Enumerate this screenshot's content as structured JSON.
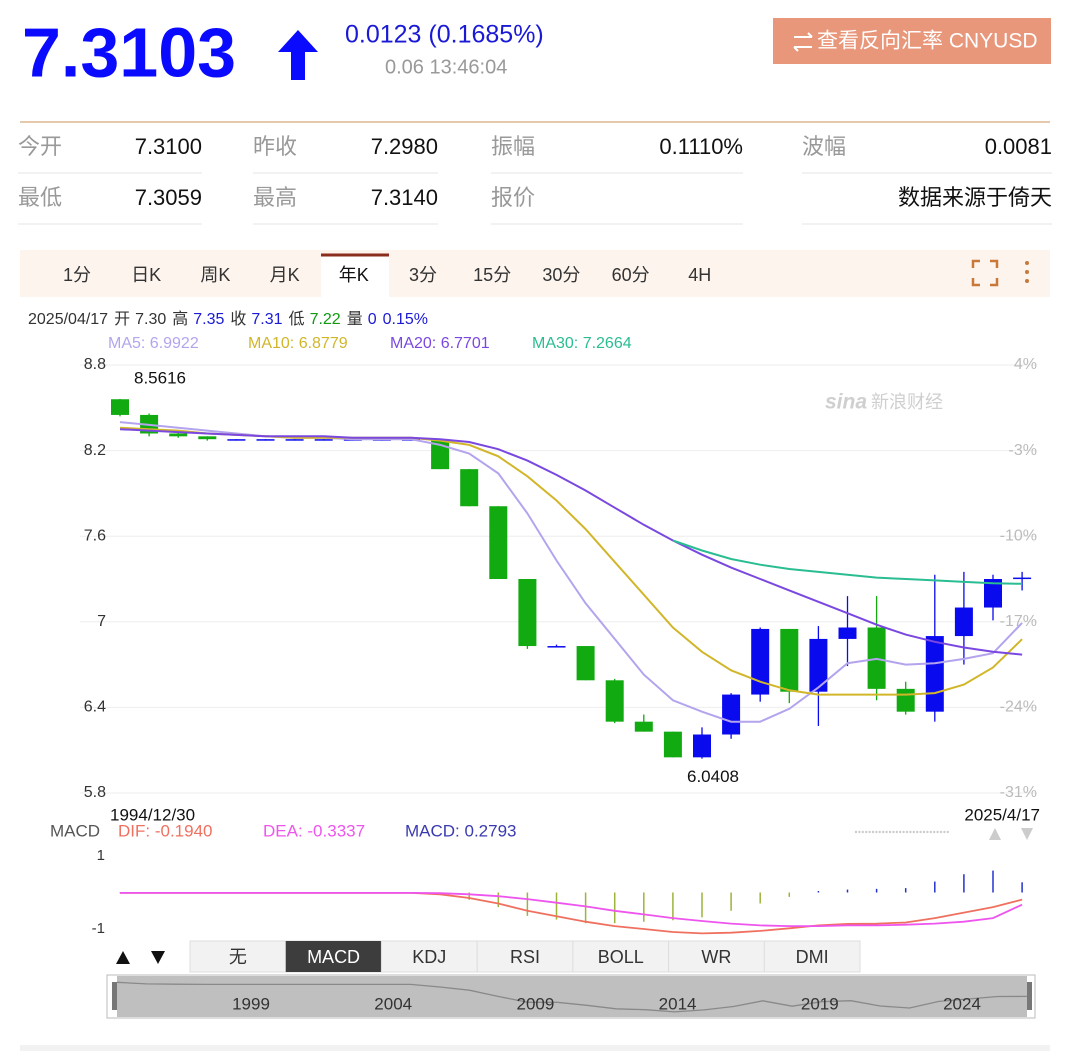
{
  "header": {
    "price": "7.3103",
    "change": "0.0123 (0.1685%)",
    "time": "0.06 13:46:04",
    "reverse_button": "查看反向汇率 CNYUSD"
  },
  "stats": [
    [
      {
        "label": "今开",
        "value": "7.3100"
      },
      {
        "label": "昨收",
        "value": "7.2980"
      },
      {
        "label": "振幅",
        "value": "0.1110%"
      },
      {
        "label": "波幅",
        "value": "0.0081"
      }
    ],
    [
      {
        "label": "最低",
        "value": "7.3059"
      },
      {
        "label": "最高",
        "value": "7.3140"
      },
      {
        "label": "报价"
      },
      {
        "value": "数据来源于倚天"
      }
    ]
  ],
  "period_tabs": {
    "items": [
      "1分",
      "日K",
      "周K",
      "月K",
      "年K",
      "3分",
      "15分",
      "30分",
      "60分",
      "4H"
    ],
    "active": 4
  },
  "indicator_tabs": {
    "items": [
      "无",
      "MACD",
      "KDJ",
      "RSI",
      "BOLL",
      "WR",
      "DMI"
    ],
    "active": 1
  },
  "navigator": {
    "years": [
      "1999",
      "2004",
      "2009",
      "2014",
      "2019",
      "2024"
    ]
  },
  "chart_data": [
    {
      "type": "candlestick",
      "info": {
        "date": "2025/04/17",
        "items": [
          {
            "label": "开",
            "value": "7.30",
            "color": "#333333"
          },
          {
            "label": "高",
            "value": "7.35",
            "color": "#1a1ad6"
          },
          {
            "label": "收",
            "value": "7.31",
            "color": "#1a1ad6"
          },
          {
            "label": "低",
            "value": "7.22",
            "color": "#119911"
          },
          {
            "label": "量",
            "value": "0",
            "color": "#1a1ad6"
          }
        ],
        "change": "0.15%"
      },
      "moving_averages": [
        {
          "name": "MA5: 6.9922",
          "color": "#b4a4ee",
          "values": [
            8.4,
            8.38,
            8.36,
            8.34,
            8.32,
            8.3,
            8.29,
            8.29,
            8.28,
            8.28,
            8.28,
            8.24,
            8.18,
            8.04,
            7.76,
            7.43,
            7.13,
            6.88,
            6.63,
            6.45,
            6.37,
            6.3,
            6.3,
            6.39,
            6.54,
            6.71,
            6.74,
            6.7,
            6.71,
            6.74,
            6.78,
            6.9922
          ]
        },
        {
          "name": "MA10: 6.8779",
          "color": "#d2b62a",
          "values": [
            8.36,
            8.35,
            8.34,
            8.32,
            8.31,
            8.3,
            8.29,
            8.29,
            8.29,
            8.29,
            8.29,
            8.27,
            8.24,
            8.16,
            8.02,
            7.85,
            7.65,
            7.42,
            7.19,
            6.96,
            6.79,
            6.66,
            6.58,
            6.52,
            6.49,
            6.49,
            6.49,
            6.49,
            6.5,
            6.56,
            6.68,
            6.8779
          ]
        },
        {
          "name": "MA20: 6.7701",
          "color": "#7a48e0",
          "values": [
            8.35,
            8.34,
            8.33,
            8.32,
            8.31,
            8.3,
            8.3,
            8.3,
            8.29,
            8.29,
            8.29,
            8.28,
            8.26,
            8.21,
            8.13,
            8.03,
            7.92,
            7.8,
            7.68,
            7.57,
            7.47,
            7.38,
            7.3,
            7.22,
            7.14,
            7.06,
            6.98,
            6.91,
            6.86,
            6.82,
            6.79,
            6.7701
          ]
        },
        {
          "name": "MA30: 7.2664",
          "color": "#2abd92",
          "values": [
            null,
            null,
            null,
            null,
            null,
            null,
            null,
            null,
            null,
            null,
            null,
            null,
            null,
            null,
            null,
            null,
            null,
            null,
            null,
            7.57,
            7.5,
            7.44,
            7.4,
            7.37,
            7.35,
            7.33,
            7.31,
            7.3,
            7.29,
            7.28,
            7.27,
            7.2664
          ]
        }
      ],
      "open": [
        8.56,
        8.45,
        8.32,
        8.3,
        8.28,
        8.28,
        8.28,
        8.28,
        8.28,
        8.28,
        8.28,
        8.28,
        8.07,
        7.81,
        7.3,
        6.83,
        6.83,
        6.59,
        6.3,
        6.23,
        6.05,
        6.21,
        6.49,
        6.95,
        6.51,
        6.88,
        6.96,
        6.53,
        6.37,
        6.9,
        7.1,
        7.3
      ],
      "high": [
        8.5616,
        8.46,
        8.33,
        8.3,
        8.28,
        8.28,
        8.28,
        8.28,
        8.28,
        8.28,
        8.28,
        8.28,
        8.07,
        7.81,
        7.3,
        6.84,
        6.83,
        6.6,
        6.35,
        6.23,
        6.26,
        6.5,
        6.96,
        6.95,
        6.97,
        7.18,
        7.18,
        6.58,
        7.33,
        7.35,
        7.33,
        7.35
      ],
      "low": [
        8.44,
        8.3,
        8.29,
        8.27,
        8.27,
        8.27,
        8.27,
        8.27,
        8.27,
        8.27,
        8.27,
        8.07,
        7.81,
        7.3,
        6.81,
        6.82,
        6.59,
        6.29,
        6.23,
        6.05,
        6.0408,
        6.18,
        6.44,
        6.43,
        6.27,
        6.69,
        6.45,
        6.35,
        6.3,
        6.7,
        7.01,
        7.22
      ],
      "close": [
        8.45,
        8.32,
        8.3,
        8.28,
        8.28,
        8.28,
        8.28,
        8.28,
        8.28,
        8.28,
        8.28,
        8.07,
        7.81,
        7.3,
        6.83,
        6.83,
        6.59,
        6.3,
        6.23,
        6.05,
        6.21,
        6.49,
        6.95,
        6.51,
        6.88,
        6.96,
        6.53,
        6.37,
        6.9,
        7.1,
        7.3,
        7.31
      ],
      "up_color": "#0a0aee",
      "down_color": "#11aa11",
      "ylim": [
        5.8,
        8.8
      ],
      "yticks": [
        8.8,
        8.2,
        7.6,
        7,
        6.4,
        5.8
      ],
      "y2ticks": [
        {
          "value": 8.8,
          "label": "4%"
        },
        {
          "value": 8.2,
          "label": "-3%"
        },
        {
          "value": 7.6,
          "label": "-10%"
        },
        {
          "value": 7,
          "label": "-17%"
        },
        {
          "value": 6.4,
          "label": "-24%"
        },
        {
          "value": 5.8,
          "label": "-31%"
        }
      ],
      "max_label": 8.5616,
      "min_label": 6.0408,
      "x_range": [
        "1994/12/30",
        "2025/4/17"
      ],
      "watermark": [
        "sina",
        "新浪财经"
      ],
      "grid": true
    },
    {
      "type": "macd",
      "title": "MACD",
      "series": [
        {
          "name": "DIF: -0.1940",
          "color": "#f07060",
          "values": [
            -0.01,
            -0.01,
            -0.01,
            -0.01,
            -0.01,
            -0.01,
            -0.01,
            -0.01,
            -0.01,
            -0.01,
            -0.01,
            -0.05,
            -0.15,
            -0.3,
            -0.5,
            -0.65,
            -0.8,
            -0.92,
            -1.0,
            -1.08,
            -1.12,
            -1.1,
            -1.05,
            -0.98,
            -0.9,
            -0.86,
            -0.85,
            -0.82,
            -0.7,
            -0.55,
            -0.4,
            -0.194
          ]
        },
        {
          "name": "DEA: -0.3337",
          "color": "#ee55ee",
          "values": [
            -0.01,
            -0.01,
            -0.01,
            -0.01,
            -0.01,
            -0.01,
            -0.01,
            -0.01,
            -0.01,
            -0.01,
            -0.01,
            -0.02,
            -0.05,
            -0.1,
            -0.18,
            -0.28,
            -0.38,
            -0.5,
            -0.6,
            -0.7,
            -0.78,
            -0.85,
            -0.9,
            -0.92,
            -0.92,
            -0.9,
            -0.9,
            -0.88,
            -0.85,
            -0.8,
            -0.7,
            -0.3337
          ]
        }
      ],
      "histogram": {
        "name": "MACD: 0.2793",
        "color": "#3a3ab0",
        "up_color": "#2233cc",
        "down_color": "#9bb43a",
        "values": [
          -0.02,
          -0.02,
          -0.02,
          -0.02,
          -0.02,
          -0.02,
          -0.02,
          -0.02,
          -0.02,
          -0.02,
          -0.02,
          -0.06,
          -0.2,
          -0.4,
          -0.64,
          -0.74,
          -0.84,
          -0.84,
          -0.8,
          -0.76,
          -0.68,
          -0.5,
          -0.3,
          -0.12,
          0.04,
          0.08,
          0.1,
          0.12,
          0.3,
          0.5,
          0.6,
          0.2793
        ]
      },
      "ylim": [
        -1.3,
        1.3
      ],
      "yticks": [
        -1,
        1
      ]
    }
  ]
}
